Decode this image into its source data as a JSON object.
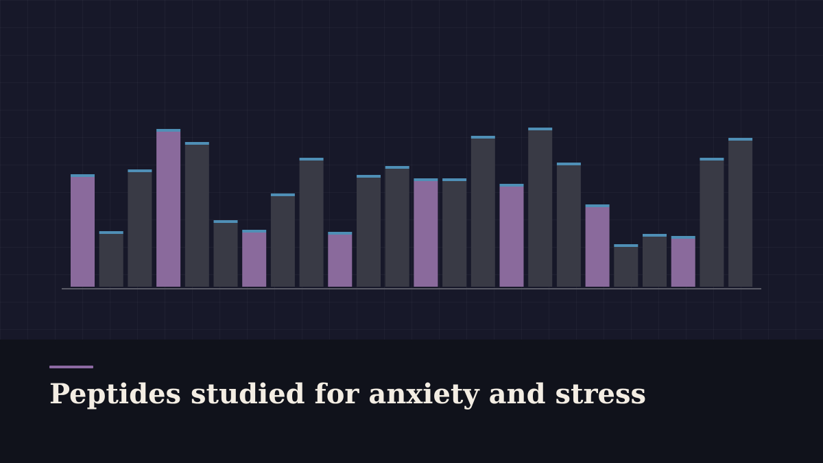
{
  "title": "Peptides studied for anxiety and stress",
  "colors": {
    "highlight_bar": "#8a6a9c",
    "regular_bar": "#393a45",
    "bar_cap": "#4f8fb6",
    "baseline": "#5a5b66",
    "title_text": "#f3ede3",
    "accent_line": "#8d6aa3"
  },
  "chart_data": {
    "type": "bar",
    "values": [
      160,
      77,
      167,
      226,
      207,
      93,
      79,
      132,
      184,
      76,
      159,
      172,
      154,
      154,
      216,
      146,
      228,
      177,
      116,
      58,
      73,
      70,
      184,
      213
    ],
    "highlighted": [
      true,
      false,
      false,
      true,
      false,
      false,
      true,
      false,
      false,
      true,
      false,
      false,
      true,
      false,
      false,
      true,
      false,
      false,
      true,
      false,
      false,
      true,
      false,
      false
    ],
    "ylim": [
      0,
      240
    ],
    "grid": true
  }
}
